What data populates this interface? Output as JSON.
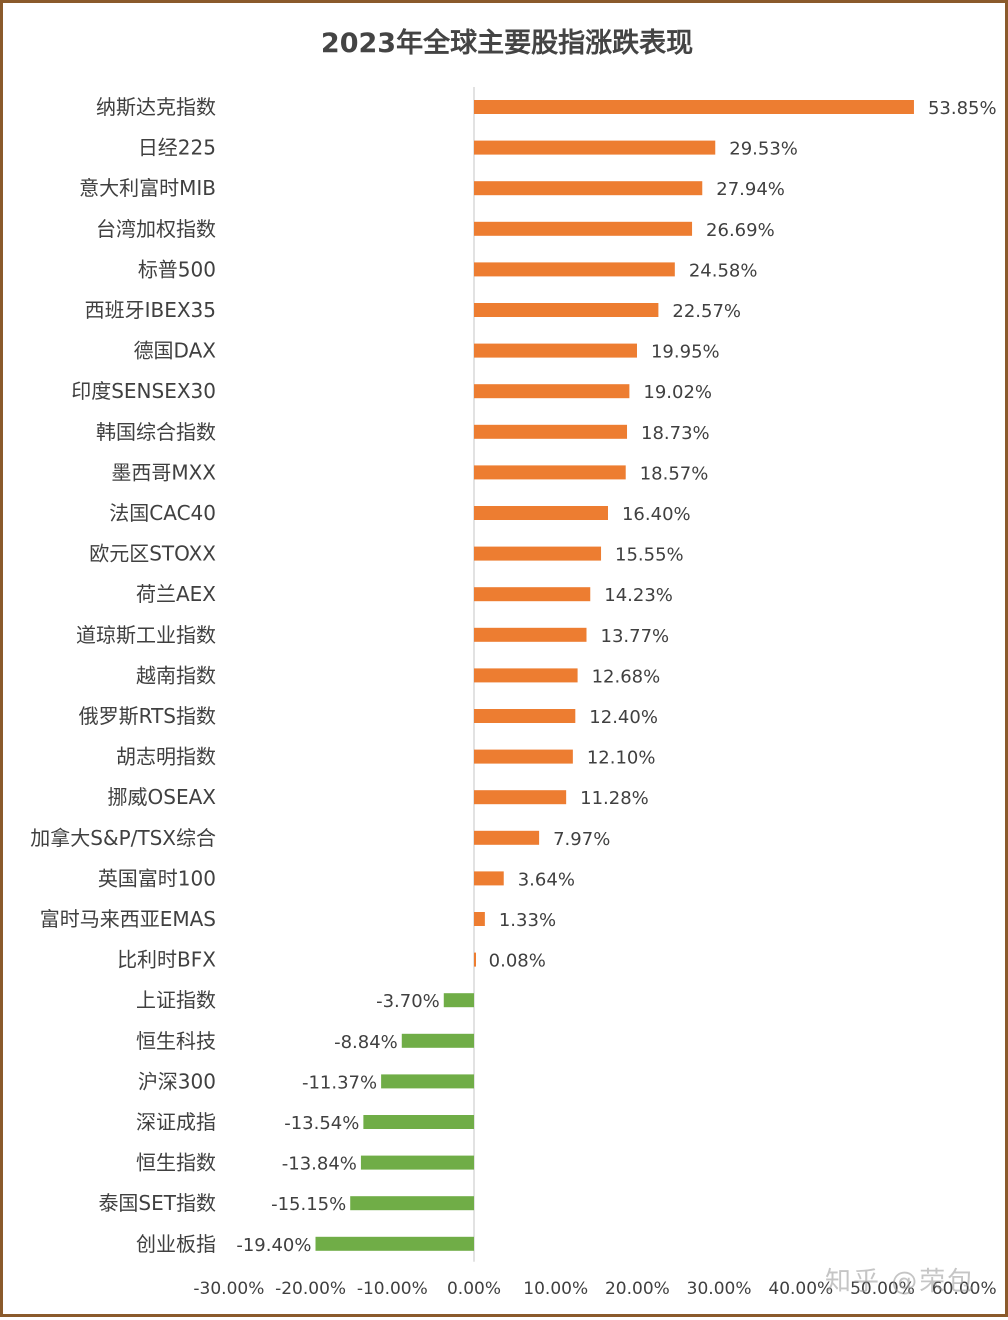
{
  "chart_data": {
    "type": "bar",
    "orientation": "horizontal",
    "title": "2023年全球主要股指涨跌表现",
    "xlim": [
      -30,
      60
    ],
    "xticks": [
      "-30.00%",
      "-20.00%",
      "-10.00%",
      "0.00%",
      "10.00%",
      "20.00%",
      "30.00%",
      "40.00%",
      "50.00%",
      "60.00%"
    ],
    "xtick_values": [
      -30,
      -20,
      -10,
      0,
      10,
      20,
      30,
      40,
      50,
      60
    ],
    "grid": false,
    "categories": [
      "纳斯达克指数",
      "日经225",
      "意大利富时MIB",
      "台湾加权指数",
      "标普500",
      "西班牙IBEX35",
      "德国DAX",
      "印度SENSEX30",
      "韩国综合指数",
      "墨西哥MXX",
      "法国CAC40",
      "欧元区STOXX",
      "荷兰AEX",
      "道琼斯工业指数",
      "越南指数",
      "俄罗斯RTS指数",
      "胡志明指数",
      "挪威OSEAX",
      "加拿大S&P/TSX综合",
      "英国富时100",
      "富时马来西亚EMAS",
      "比利时BFX",
      "上证指数",
      "恒生科技",
      "沪深300",
      "深证成指",
      "恒生指数",
      "泰国SET指数",
      "创业板指"
    ],
    "values": [
      53.85,
      29.53,
      27.94,
      26.69,
      24.58,
      22.57,
      19.95,
      19.02,
      18.73,
      18.57,
      16.4,
      15.55,
      14.23,
      13.77,
      12.68,
      12.4,
      12.1,
      11.28,
      7.97,
      3.64,
      1.33,
      0.08,
      -3.7,
      -8.84,
      -11.37,
      -13.54,
      -13.84,
      -15.15,
      -19.4
    ],
    "value_labels": [
      "53.85%",
      "29.53%",
      "27.94%",
      "26.69%",
      "24.58%",
      "22.57%",
      "19.95%",
      "19.02%",
      "18.73%",
      "18.57%",
      "16.40%",
      "15.55%",
      "14.23%",
      "13.77%",
      "12.68%",
      "12.40%",
      "12.10%",
      "11.28%",
      "7.97%",
      "3.64%",
      "1.33%",
      "0.08%",
      "-3.70%",
      "-8.84%",
      "-11.37%",
      "-13.54%",
      "-13.84%",
      "-15.15%",
      "-19.40%"
    ],
    "colors": {
      "positive": "#ed7d31",
      "negative": "#70ad47",
      "axis": "#d9d9d9",
      "text": "#404040"
    }
  },
  "watermark": "知乎 @荣包"
}
